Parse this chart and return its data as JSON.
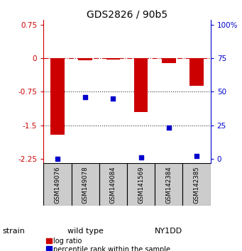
{
  "title": "GDS2826 / 90b5",
  "samples": [
    "GSM149076",
    "GSM149078",
    "GSM149084",
    "GSM141569",
    "GSM142384",
    "GSM142385"
  ],
  "log_ratio": [
    -1.72,
    -0.05,
    -0.03,
    -1.2,
    -0.12,
    -0.62
  ],
  "percentile_rank": [
    0.0,
    46.0,
    45.0,
    1.0,
    23.0,
    2.0
  ],
  "ylim_left": [
    -2.35,
    0.85
  ],
  "yticks_left": [
    0.75,
    0.0,
    -0.75,
    -1.5,
    -2.25
  ],
  "ytick_left_labels": [
    "0.75",
    "0",
    "-0.75",
    "-1.5",
    "-2.25"
  ],
  "yticks_right_pct": [
    100,
    75,
    50,
    25,
    0
  ],
  "ytick_right_labels": [
    "100%",
    "75",
    "50",
    "25",
    "0"
  ],
  "hlines": [
    0.0,
    -0.75,
    -1.5
  ],
  "hline_styles": [
    "dashdot",
    "dotted",
    "dotted"
  ],
  "hline_colors": [
    "#cc0000",
    "#333333",
    "#333333"
  ],
  "bar_color": "#cc0000",
  "dot_color": "#0000cc",
  "bar_width": 0.5,
  "groups": [
    {
      "label": "wild type",
      "indices": [
        0,
        1,
        2
      ],
      "color": "#aaffaa"
    },
    {
      "label": "NY1DD",
      "indices": [
        3,
        4,
        5
      ],
      "color": "#44dd44"
    }
  ],
  "strain_label": "strain",
  "legend_items": [
    {
      "color": "#cc0000",
      "label": "log ratio"
    },
    {
      "color": "#0000cc",
      "label": "percentile rank within the sample"
    }
  ],
  "left_label_color": "#cc0000",
  "right_label_color": "#0000cc",
  "title_fontsize": 10,
  "tick_fontsize": 7.5,
  "sample_fontsize": 6.2,
  "strain_fontsize": 8,
  "legend_fontsize": 7
}
